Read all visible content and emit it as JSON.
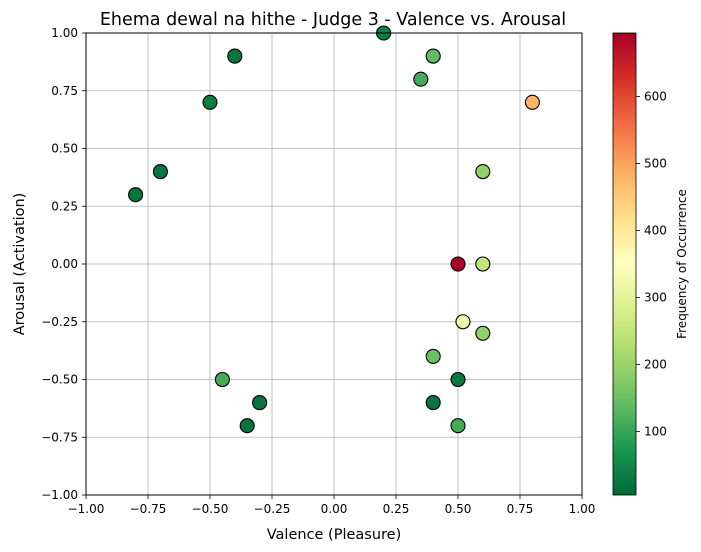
{
  "chart_data": {
    "type": "scatter",
    "title": "Ehema dewal na hithe - Judge 3 - Valence vs. Arousal",
    "xlabel": "Valence (Pleasure)",
    "ylabel": "Arousal (Activation)",
    "xlim": [
      -1.0,
      1.0
    ],
    "ylim": [
      -1.0,
      1.0
    ],
    "xticks": [
      "−1.00",
      "−0.75",
      "−0.50",
      "−0.25",
      "0.00",
      "0.25",
      "0.50",
      "0.75",
      "1.00"
    ],
    "yticks": [
      "−1.00",
      "−0.75",
      "−0.50",
      "−0.25",
      "0.00",
      "0.25",
      "0.50",
      "0.75",
      "1.00"
    ],
    "grid": true,
    "colormap": "RdYlGn_r",
    "colorbar": {
      "label": "Frequency of Occurrence",
      "range": [
        5,
        695
      ],
      "ticks": [
        "100",
        "200",
        "300",
        "400",
        "500",
        "600"
      ],
      "tick_values": [
        100,
        200,
        300,
        400,
        500,
        600
      ]
    },
    "points": [
      {
        "x": 0.2,
        "y": 1.0,
        "freq": 40
      },
      {
        "x": -0.4,
        "y": 0.9,
        "freq": 25
      },
      {
        "x": 0.4,
        "y": 0.9,
        "freq": 140
      },
      {
        "x": 0.35,
        "y": 0.8,
        "freq": 110
      },
      {
        "x": -0.5,
        "y": 0.7,
        "freq": 35
      },
      {
        "x": 0.8,
        "y": 0.7,
        "freq": 480
      },
      {
        "x": -0.7,
        "y": 0.4,
        "freq": 25
      },
      {
        "x": 0.6,
        "y": 0.4,
        "freq": 190
      },
      {
        "x": -0.8,
        "y": 0.3,
        "freq": 25
      },
      {
        "x": 0.5,
        "y": 0.0,
        "freq": 690
      },
      {
        "x": 0.6,
        "y": 0.0,
        "freq": 250
      },
      {
        "x": 0.52,
        "y": -0.25,
        "freq": 320
      },
      {
        "x": 0.6,
        "y": -0.3,
        "freq": 190
      },
      {
        "x": 0.4,
        "y": -0.4,
        "freq": 150
      },
      {
        "x": -0.45,
        "y": -0.5,
        "freq": 110
      },
      {
        "x": 0.5,
        "y": -0.5,
        "freq": 30
      },
      {
        "x": -0.3,
        "y": -0.6,
        "freq": 25
      },
      {
        "x": 0.4,
        "y": -0.6,
        "freq": 25
      },
      {
        "x": -0.35,
        "y": -0.7,
        "freq": 20
      },
      {
        "x": 0.5,
        "y": -0.7,
        "freq": 110
      }
    ]
  }
}
